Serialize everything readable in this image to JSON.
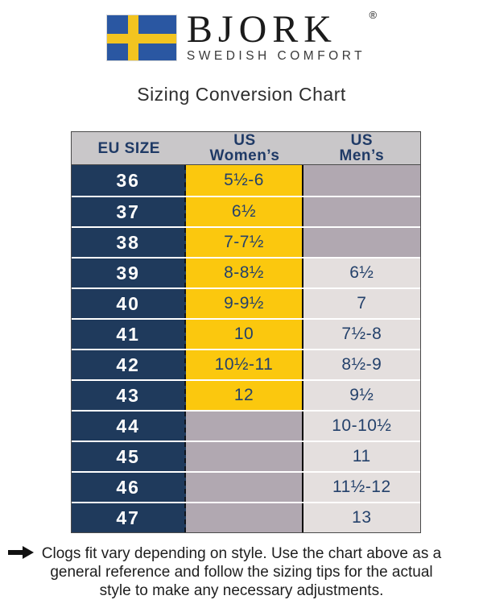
{
  "brand": {
    "name": "BJORK",
    "registered": "®",
    "tagline": "SWEDISH COMFORT",
    "flag_icon": "swedish-flag",
    "flag_blue": "#2a57a2",
    "flag_yellow": "#f2c420"
  },
  "title": "Sizing Conversion Chart",
  "table": {
    "headers": {
      "eu": "EU SIZE",
      "women": "US\nWomen’s",
      "men": "US\nMen’s"
    },
    "colors": {
      "eu_cell": "#1f3a5c",
      "women_filled": "#fbc80e",
      "men_filled": "#e4dfde",
      "empty_cell": "#b1a8b1",
      "header_bg": "#c9c7c9",
      "header_text": "#1f3a66",
      "value_text": "#24416b"
    },
    "rows": [
      {
        "eu": "36",
        "women": "5½-6",
        "men": ""
      },
      {
        "eu": "37",
        "women": "6½",
        "men": ""
      },
      {
        "eu": "38",
        "women": "7-7½",
        "men": ""
      },
      {
        "eu": "39",
        "women": "8-8½",
        "men": "6½"
      },
      {
        "eu": "40",
        "women": "9-9½",
        "men": "7"
      },
      {
        "eu": "41",
        "women": "10",
        "men": "7½-8"
      },
      {
        "eu": "42",
        "women": "10½-11",
        "men": "8½-9"
      },
      {
        "eu": "43",
        "women": "12",
        "men": "9½"
      },
      {
        "eu": "44",
        "women": "",
        "men": "10-10½"
      },
      {
        "eu": "45",
        "women": "",
        "men": "11"
      },
      {
        "eu": "46",
        "women": "",
        "men": "11½-12"
      },
      {
        "eu": "47",
        "women": "",
        "men": "13"
      }
    ]
  },
  "note": {
    "icon": "right-arrow",
    "lines": [
      "Clogs fit vary depending on style. Use the chart above as a",
      "general reference and follow the sizing tips for the actual",
      "style to make any necessary adjustments."
    ]
  }
}
